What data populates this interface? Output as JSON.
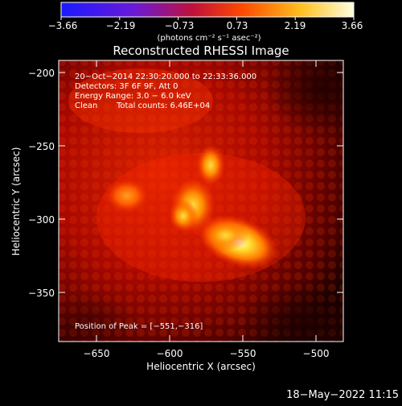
{
  "colorbar": {
    "tick_labels": [
      "−3.66",
      "−2.19",
      "−0.73",
      "0.73",
      "2.19",
      "3.66"
    ],
    "units_label": "(photons cm⁻² s⁻¹ asec⁻²)",
    "range": [
      -3.66,
      3.66
    ],
    "colors": [
      "#1a1aff",
      "#6a1ad8",
      "#c0103a",
      "#ff4a00",
      "#ffc020",
      "#ffffe0"
    ]
  },
  "plot": {
    "title": "Reconstructed RHESSI Image",
    "xlabel": "Heliocentric X (arcsec)",
    "ylabel": "Heliocentric Y (arcsec)",
    "x_ticks": [
      "−650",
      "−600",
      "−550",
      "−500"
    ],
    "y_ticks": [
      "−200",
      "−250",
      "−300",
      "−350"
    ],
    "xlim": [
      -672,
      -479
    ],
    "ylim": [
      -383,
      -190
    ]
  },
  "annotation": {
    "time_range": "20−Oct−2014 22:30:20.000 to 22:33:36.000",
    "detectors": "Detectors: 3F 6F 9F, Att 0",
    "energy": "Energy Range: 3.0 − 6.0 keV",
    "algorithm": "Clean",
    "counts": "Total counts: 6.46E+04",
    "peak": "Position of Peak = [−551,−316]"
  },
  "timestamp": "18−May−2022 11:15"
}
